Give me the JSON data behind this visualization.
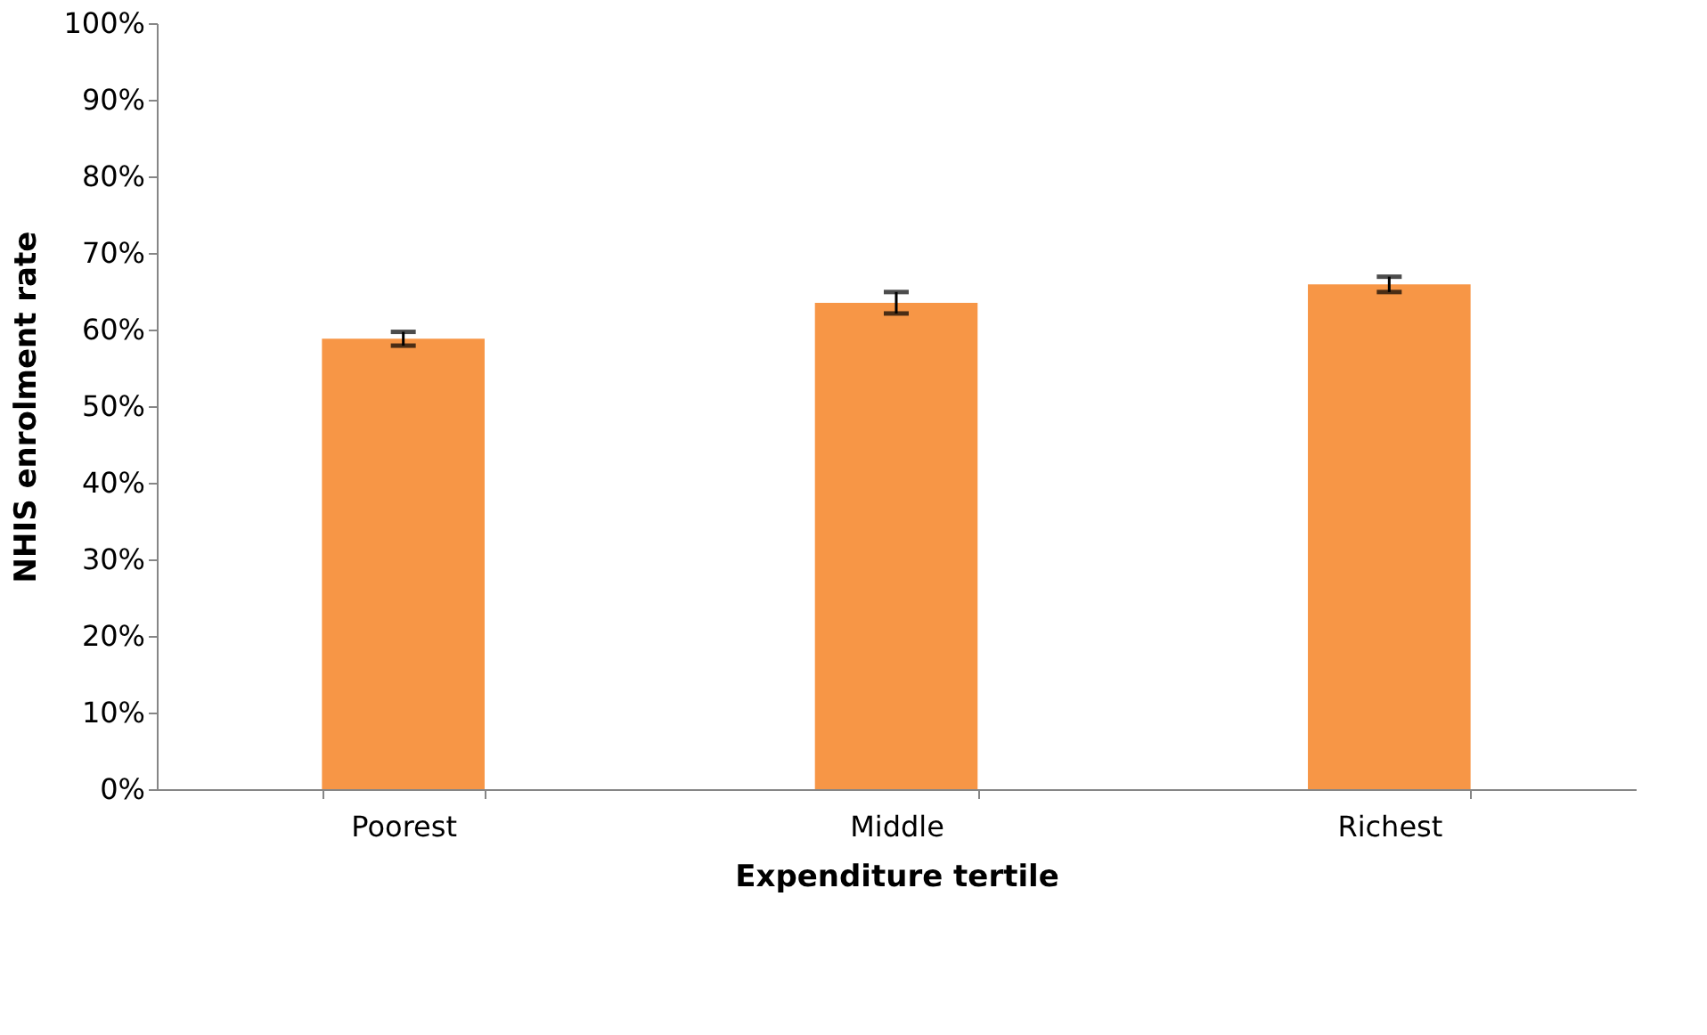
{
  "chart_data": {
    "type": "bar",
    "xlabel": "Expenditure tertile",
    "ylabel": "NHIS enrolment rate",
    "categories": [
      "Poorest",
      "Middle",
      "Richest"
    ],
    "values": [
      58.8,
      63.5,
      65.9
    ],
    "errors": [
      0.9,
      1.4,
      1.0
    ],
    "color": "#f79646",
    "ylim": [
      0,
      100
    ],
    "yticks": [
      {
        "value": 0,
        "label": "0%"
      },
      {
        "value": 10,
        "label": "10%"
      },
      {
        "value": 20,
        "label": "20%"
      },
      {
        "value": 30,
        "label": "30%"
      },
      {
        "value": 40,
        "label": "40%"
      },
      {
        "value": 50,
        "label": "50%"
      },
      {
        "value": 60,
        "label": "60%"
      },
      {
        "value": 70,
        "label": "70%"
      },
      {
        "value": 80,
        "label": "80%"
      },
      {
        "value": 90,
        "label": "90%"
      },
      {
        "value": 100,
        "label": "100%"
      }
    ],
    "grid": false
  }
}
